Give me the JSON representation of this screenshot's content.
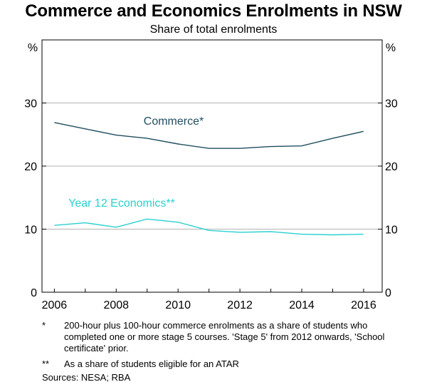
{
  "chart_data": {
    "type": "line",
    "title": "Commerce and Economics Enrolments in NSW",
    "subtitle": "Share of total enrolments",
    "ylabel_left": "%",
    "ylabel_right": "%",
    "ylim": [
      0,
      40
    ],
    "yticks": [
      0,
      10,
      20,
      30
    ],
    "xlim": [
      2005.6,
      2016.6
    ],
    "xticks": [
      2006,
      2008,
      2010,
      2012,
      2014,
      2016
    ],
    "grid": true,
    "series": [
      {
        "name": "Commerce*",
        "color": "#1f4e5f",
        "x": [
          2006,
          2007,
          2008,
          2009,
          2010,
          2011,
          2012,
          2013,
          2014,
          2015,
          2016
        ],
        "values": [
          26.9,
          25.9,
          24.9,
          24.4,
          23.5,
          22.8,
          22.8,
          23.1,
          23.2,
          24.4,
          25.5
        ]
      },
      {
        "name": "Year 12 Economics**",
        "color": "#2ad0d0",
        "x": [
          2006,
          2007,
          2008,
          2009,
          2010,
          2011,
          2012,
          2013,
          2014,
          2015,
          2016
        ],
        "values": [
          10.6,
          11.0,
          10.3,
          11.6,
          11.1,
          9.8,
          9.5,
          9.6,
          9.2,
          9.1,
          9.2
        ]
      }
    ]
  },
  "notes": [
    {
      "mark": "*",
      "text": "200-hour plus 100-hour commerce enrolments as a share of students who completed one or more stage 5 courses. 'Stage 5' from 2012 onwards, 'School certificate' prior."
    },
    {
      "mark": "**",
      "text": "As a share of students eligible for an ATAR"
    }
  ],
  "sources": "Sources:  NESA; RBA"
}
